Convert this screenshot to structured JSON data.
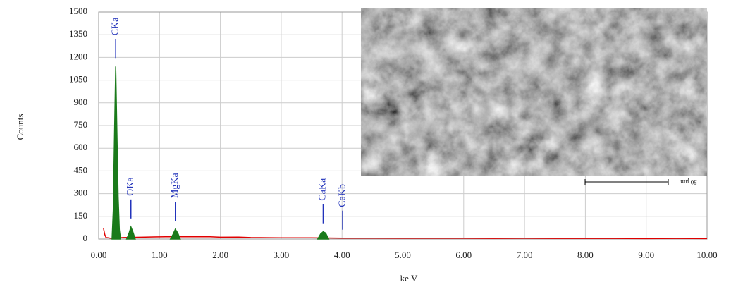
{
  "chart_data": {
    "type": "spectrum",
    "x_label": "ke V",
    "y_label": "Counts",
    "xlim": [
      0,
      10
    ],
    "ylim": [
      0,
      1500
    ],
    "xticks": [
      {
        "value": 0,
        "label": "0.00"
      },
      {
        "value": 1,
        "label": "1.00"
      },
      {
        "value": 2,
        "label": "2.00"
      },
      {
        "value": 3,
        "label": "3.00"
      },
      {
        "value": 4,
        "label": "4.00"
      },
      {
        "value": 5,
        "label": "5.00"
      },
      {
        "value": 6,
        "label": "6.00"
      },
      {
        "value": 7,
        "label": "7.00"
      },
      {
        "value": 8,
        "label": "8.00"
      },
      {
        "value": 9,
        "label": "9.00"
      },
      {
        "value": 10,
        "label": "10.00"
      }
    ],
    "yticks": [
      0,
      150,
      300,
      450,
      600,
      750,
      900,
      1050,
      1200,
      1350,
      1500
    ],
    "grid": true,
    "series": [
      {
        "color": "#e00000",
        "fill": false,
        "x": [
          0.08,
          0.1,
          0.12,
          0.16,
          0.2,
          0.4,
          0.7,
          0.9,
          1.1,
          1.5,
          1.8,
          2.0,
          2.3,
          2.5,
          2.8,
          3.0,
          3.3,
          3.5,
          4.0,
          4.5,
          5.0,
          5.5,
          6.0,
          6.5,
          7.0,
          7.5,
          8.0,
          8.5,
          9.0,
          9.5,
          10.0
        ],
        "values": [
          70,
          30,
          10,
          8,
          5,
          10,
          12,
          14,
          15,
          15,
          16,
          12,
          13,
          10,
          9,
          8,
          8,
          8,
          6,
          6,
          5,
          5,
          5,
          4,
          5,
          4,
          4,
          4,
          3,
          4,
          3
        ]
      },
      {
        "color": "#1a7a1a",
        "fill": true,
        "x": [
          0.22,
          0.24,
          0.26,
          0.28,
          0.3,
          0.32,
          0.34,
          0.36,
          null,
          0.46,
          0.5,
          0.53,
          0.56,
          0.6,
          null,
          1.18,
          1.22,
          1.26,
          1.3,
          1.34,
          null,
          3.6,
          3.65,
          3.69,
          3.73,
          3.78
        ],
        "values": [
          0,
          190,
          680,
          1140,
          700,
          280,
          60,
          0,
          null,
          0,
          40,
          80,
          50,
          0,
          null,
          0,
          30,
          65,
          40,
          0,
          null,
          0,
          35,
          48,
          40,
          0
        ]
      }
    ],
    "peaks": [
      {
        "label": "CKa",
        "energy": 0.28
      },
      {
        "label": "OKa",
        "energy": 0.53
      },
      {
        "label": "MgKa",
        "energy": 1.26
      },
      {
        "label": "CaKa",
        "energy": 3.69
      },
      {
        "label": "CaKb",
        "energy": 4.01
      }
    ]
  },
  "inset": {
    "scale_label": "50 µm"
  }
}
